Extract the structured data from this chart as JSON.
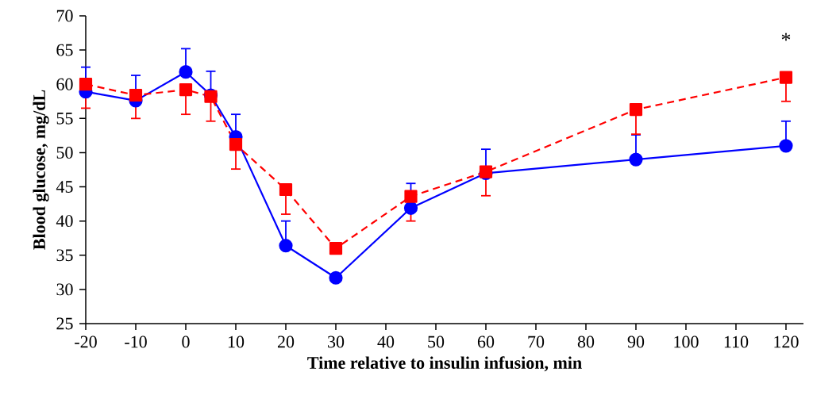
{
  "chart_data": {
    "type": "line",
    "xlabel": "Time relative to insulin infusion, min",
    "ylabel": "Blood glucose, mg/dL",
    "xlim": [
      -20,
      123.5
    ],
    "xticks": [
      -20,
      -10,
      0,
      10,
      20,
      30,
      40,
      50,
      60,
      70,
      80,
      90,
      100,
      110,
      120
    ],
    "ylim": [
      25,
      70
    ],
    "yticks": [
      25,
      30,
      35,
      40,
      45,
      50,
      55,
      60,
      65,
      70
    ],
    "x": [
      -20,
      -10,
      0,
      5,
      10,
      20,
      30,
      45,
      60,
      90,
      120
    ],
    "series": [
      {
        "color": "#0000ff",
        "marker": "circle",
        "line_style": "solid",
        "values": [
          58.9,
          57.6,
          61.8,
          58.4,
          52.3,
          36.4,
          31.7,
          41.9,
          47.0,
          49.0,
          51.0
        ],
        "errors": [
          [
            58.9,
            62.5
          ],
          [
            57.6,
            61.3
          ],
          [
            61.8,
            65.2
          ],
          [
            58.4,
            61.9
          ],
          [
            52.3,
            55.6
          ],
          [
            36.4,
            40.0
          ],
          null,
          [
            41.9,
            45.5
          ],
          [
            47.0,
            50.5
          ],
          [
            49.0,
            52.6
          ],
          [
            51.0,
            54.6
          ]
        ]
      },
      {
        "color": "#ff0000",
        "marker": "square",
        "line_style": "dashed",
        "values": [
          60.0,
          58.4,
          59.2,
          58.2,
          51.2,
          44.6,
          36.0,
          43.6,
          47.2,
          56.3,
          61.0
        ],
        "errors": [
          [
            56.5,
            60.0
          ],
          [
            55.0,
            58.4
          ],
          [
            55.6,
            59.2
          ],
          [
            54.6,
            58.2
          ],
          [
            47.6,
            51.2
          ],
          [
            41.0,
            44.6
          ],
          null,
          [
            40.0,
            43.6
          ],
          [
            43.7,
            47.2
          ],
          [
            52.7,
            56.3
          ],
          [
            57.5,
            61.0
          ]
        ]
      }
    ],
    "annotations": [
      "*"
    ]
  }
}
